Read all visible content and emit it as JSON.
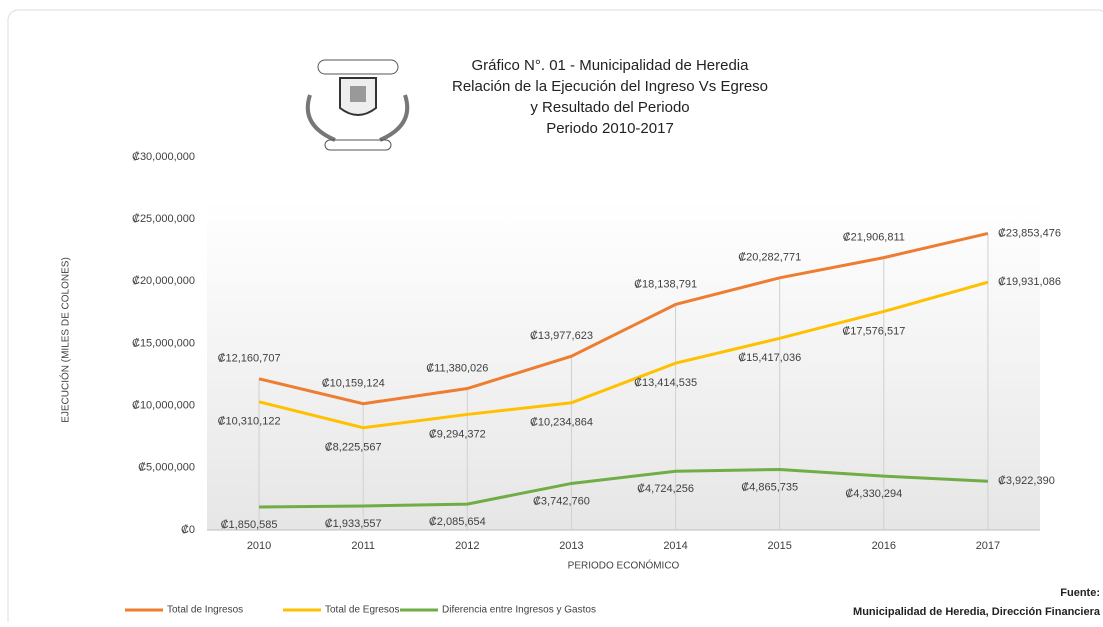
{
  "chart_data": {
    "type": "line",
    "title": [
      "Gráfico N°. 01 - Municipalidad de Heredia",
      "Relación de la Ejecución del Ingreso Vs Egreso",
      "y Resultado del Periodo",
      "Periodo 2010-2017"
    ],
    "y_label": "EJECUCIÓN (MILES DE COLONES)",
    "x_label": "PERIODO ECONÓMICO",
    "source": [
      "Fuente:",
      "Municipalidad de Heredia, Dirección Financiera"
    ],
    "categories": [
      "2010",
      "2011",
      "2012",
      "2013",
      "2014",
      "2015",
      "2016",
      "2017"
    ],
    "ylim": [
      0,
      30000000
    ],
    "yticks": [
      {
        "value": 0,
        "label": "₡0"
      },
      {
        "value": 5000000,
        "label": "₡5,000,000"
      },
      {
        "value": 10000000,
        "label": "₡10,000,000"
      },
      {
        "value": 15000000,
        "label": "₡15,000,000"
      },
      {
        "value": 20000000,
        "label": "₡20,000,000"
      },
      {
        "value": 25000000,
        "label": "₡25,000,000"
      },
      {
        "value": 30000000,
        "label": "₡30,000,000"
      }
    ],
    "series": [
      {
        "name": "Total de Ingresos",
        "color": "#ed7d31",
        "values": [
          12160707,
          10159124,
          11380026,
          13977623,
          18138791,
          20282771,
          21906811,
          23853476
        ],
        "value_labels": [
          "₡12,160,707",
          "₡10,159,124",
          "₡11,380,026",
          "₡13,977,623",
          "₡18,138,791",
          "₡20,282,771",
          "₡21,906,811",
          "₡23,853,476"
        ]
      },
      {
        "name": "Total de Egresos",
        "color": "#ffc000",
        "values": [
          10310122,
          8225567,
          9294372,
          10234864,
          13414535,
          15417036,
          17576517,
          19931086
        ],
        "value_labels": [
          "₡10,310,122",
          "₡8,225,567",
          "₡9,294,372",
          "₡10,234,864",
          "₡13,414,535",
          "₡15,417,036",
          "₡17,576,517",
          "₡19,931,086"
        ]
      },
      {
        "name": "Diferencia entre Ingresos y Gastos",
        "color": "#70ad47",
        "values": [
          1850585,
          1933557,
          2085654,
          3742760,
          4724256,
          4865735,
          4330294,
          3922390
        ],
        "value_labels": [
          "₡1,850,585",
          "₡1,933,557",
          "₡2,085,654",
          "₡3,742,760",
          "₡4,724,256",
          "₡4,865,735",
          "₡4,330,294",
          "₡3,922,390"
        ]
      }
    ]
  }
}
